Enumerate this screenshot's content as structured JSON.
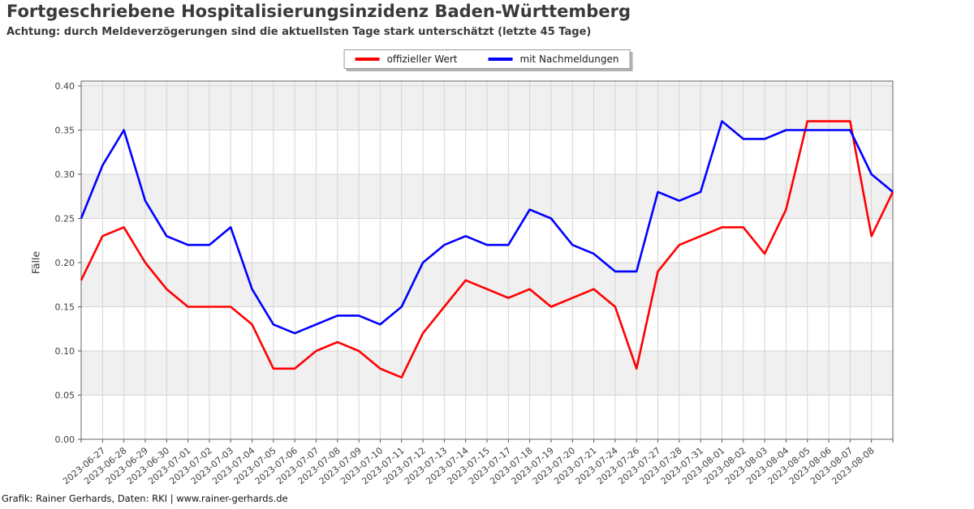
{
  "page": {
    "footer": "Grafik: Rainer Gerhards, Daten: RKI | www.rainer-gerhards.de"
  },
  "chart_data": {
    "type": "line",
    "title": "Fortgeschriebene Hospitalisierungsinzidenz Baden-Württemberg",
    "subtitle": "Achtung: durch Meldeverzögerungen sind die aktuellsten Tage stark unterschätzt (letzte 45 Tage)",
    "ylabel": "Fälle",
    "xlabel": "",
    "ylim": [
      0,
      0.406
    ],
    "grid": true,
    "band_color": "#f0f0f0",
    "gridline_color": "#d4d4d4",
    "legend_position": "top-center",
    "yticks": [
      "0.00",
      "0.05",
      "0.10",
      "0.15",
      "0.20",
      "0.25",
      "0.30",
      "0.35",
      "0.40"
    ],
    "x_labels": [
      "",
      "2023-06-27",
      "2023-06-28",
      "2023-06-29",
      "2023-06-30",
      "2023-07-01",
      "2023-07-02",
      "2023-07-03",
      "2023-07-04",
      "2023-07-05",
      "2023-07-06",
      "2023-07-07",
      "2023-07-08",
      "2023-07-09",
      "2023-07-10",
      "2023-07-11",
      "2023-07-12",
      "2023-07-13",
      "2023-07-14",
      "2023-07-15",
      "2023-07-17",
      "2023-07-18",
      "2023-07-19",
      "2023-07-20",
      "2023-07-21",
      "2023-07-24",
      "2023-07-26",
      "2023-07-27",
      "2023-07-28",
      "2023-07-31",
      "2023-08-01",
      "2023-08-02",
      "2023-08-03",
      "2023-08-04",
      "2023-08-05",
      "2023-08-06",
      "2023-08-07",
      "2023-08-08",
      ""
    ],
    "series": [
      {
        "name": "offizieller Wert",
        "color": "#ff0000",
        "values": [
          0.18,
          0.23,
          0.24,
          0.2,
          0.17,
          0.15,
          0.15,
          0.15,
          0.13,
          0.08,
          0.08,
          0.1,
          0.11,
          0.1,
          0.08,
          0.07,
          0.12,
          0.15,
          0.18,
          0.17,
          0.16,
          0.17,
          0.15,
          0.16,
          0.17,
          0.15,
          0.08,
          0.19,
          0.22,
          0.23,
          0.24,
          0.24,
          0.21,
          0.26,
          0.36,
          0.36,
          0.36,
          0.23,
          0.28
        ]
      },
      {
        "name": "mit Nachmeldungen",
        "color": "#0000ff",
        "values": [
          0.25,
          0.31,
          0.35,
          0.27,
          0.23,
          0.22,
          0.22,
          0.24,
          0.17,
          0.13,
          0.12,
          0.13,
          0.14,
          0.14,
          0.13,
          0.15,
          0.2,
          0.22,
          0.23,
          0.22,
          0.22,
          0.26,
          0.25,
          0.22,
          0.21,
          0.19,
          0.19,
          0.28,
          0.27,
          0.28,
          0.36,
          0.34,
          0.34,
          0.35,
          0.35,
          0.35,
          0.35,
          0.3,
          0.28
        ]
      }
    ]
  }
}
